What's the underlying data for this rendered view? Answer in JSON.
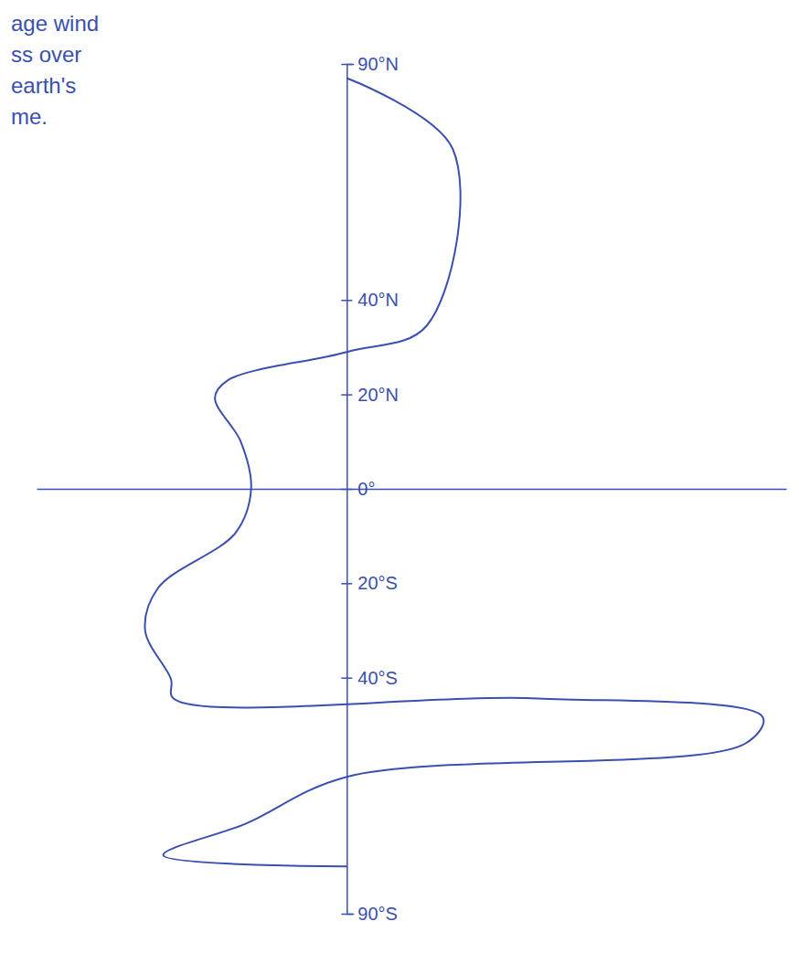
{
  "chart_data": {
    "type": "line",
    "annotations": [
      "age wind",
      "ss over",
      "earth's",
      "me."
    ],
    "x": [
      0,
      4.1,
      3.1,
      0,
      -4.6,
      -5.1,
      -4.1,
      -3.7,
      -4.3,
      -7.3,
      -7.8,
      -6.8,
      -6.7,
      7.4,
      16.1,
      15.4,
      0,
      -3.9,
      -7.1,
      0
    ],
    "values": [
      87,
      72,
      34.6,
      29,
      23,
      19.3,
      10,
      0,
      -9.3,
      -21,
      -30,
      -40.3,
      -44.4,
      -44.4,
      -48.4,
      -54,
      -61,
      -70.9,
      -77.6,
      -80
    ],
    "color": "#3a4fb0",
    "xlim": [
      -12,
      17
    ],
    "ylim": [
      -90,
      90
    ],
    "yticks": [
      {
        "value": 90,
        "label": "90°N"
      },
      {
        "value": 40,
        "label": "40°N"
      },
      {
        "value": 20,
        "label": "20°N"
      },
      {
        "value": 0,
        "label": "0°"
      },
      {
        "value": -20,
        "label": "20°S"
      },
      {
        "value": -40,
        "label": "40°S"
      },
      {
        "value": -90,
        "label": "90°S"
      }
    ],
    "tick_labels": "y",
    "grid": false
  }
}
